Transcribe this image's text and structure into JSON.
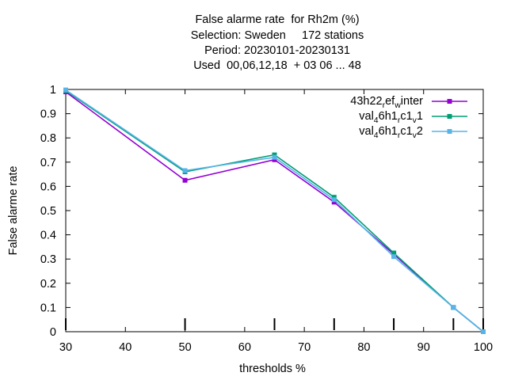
{
  "chart_data": {
    "type": "line",
    "title_lines": [
      "False alarme rate  for Rh2m (%)",
      "Selection: Sweden     172 stations",
      "Period: 20230101-20230131",
      "Used  00,06,12,18  + 03 06 ... 48"
    ],
    "xlabel": "thresholds %",
    "ylabel": "False alarme rate",
    "xlim": [
      30,
      100
    ],
    "ylim": [
      0,
      1
    ],
    "x_ticks": [
      "30",
      "40",
      "50",
      "60",
      "70",
      "80",
      "90",
      "100"
    ],
    "y_ticks": [
      "0",
      "0.1",
      "0.2",
      "0.3",
      "0.4",
      "0.5",
      "0.6",
      "0.7",
      "0.8",
      "0.9",
      "1"
    ],
    "grid": false,
    "legend_position": "top-right",
    "threshold_markers_x": [
      30,
      50,
      65,
      75,
      85,
      95,
      100
    ],
    "series": [
      {
        "name": "43h22_ref_winter",
        "legend_parts": [
          "43h22",
          "r",
          "ef",
          "w",
          "inter"
        ],
        "color": "#9400d3",
        "x": [
          30,
          50,
          65,
          75,
          85,
          95,
          100
        ],
        "y": [
          0.99,
          0.625,
          0.71,
          0.535,
          0.32,
          0.1,
          0.0
        ]
      },
      {
        "name": "val_46h1_rc1_v1",
        "legend_parts": [
          "val",
          "4",
          "6h1",
          "r",
          "c1",
          "v",
          "1"
        ],
        "color": "#009e73",
        "x": [
          30,
          50,
          65,
          75,
          85,
          95,
          100
        ],
        "y": [
          0.995,
          0.66,
          0.73,
          0.555,
          0.325,
          0.1,
          0.0
        ]
      },
      {
        "name": "val_46h1_rc1_v2",
        "legend_parts": [
          "val",
          "4",
          "6h1",
          "r",
          "c1",
          "v",
          "2"
        ],
        "color": "#56b4e9",
        "x": [
          30,
          50,
          65,
          75,
          85,
          95,
          100
        ],
        "y": [
          0.998,
          0.665,
          0.72,
          0.545,
          0.31,
          0.1,
          0.0
        ]
      }
    ]
  }
}
